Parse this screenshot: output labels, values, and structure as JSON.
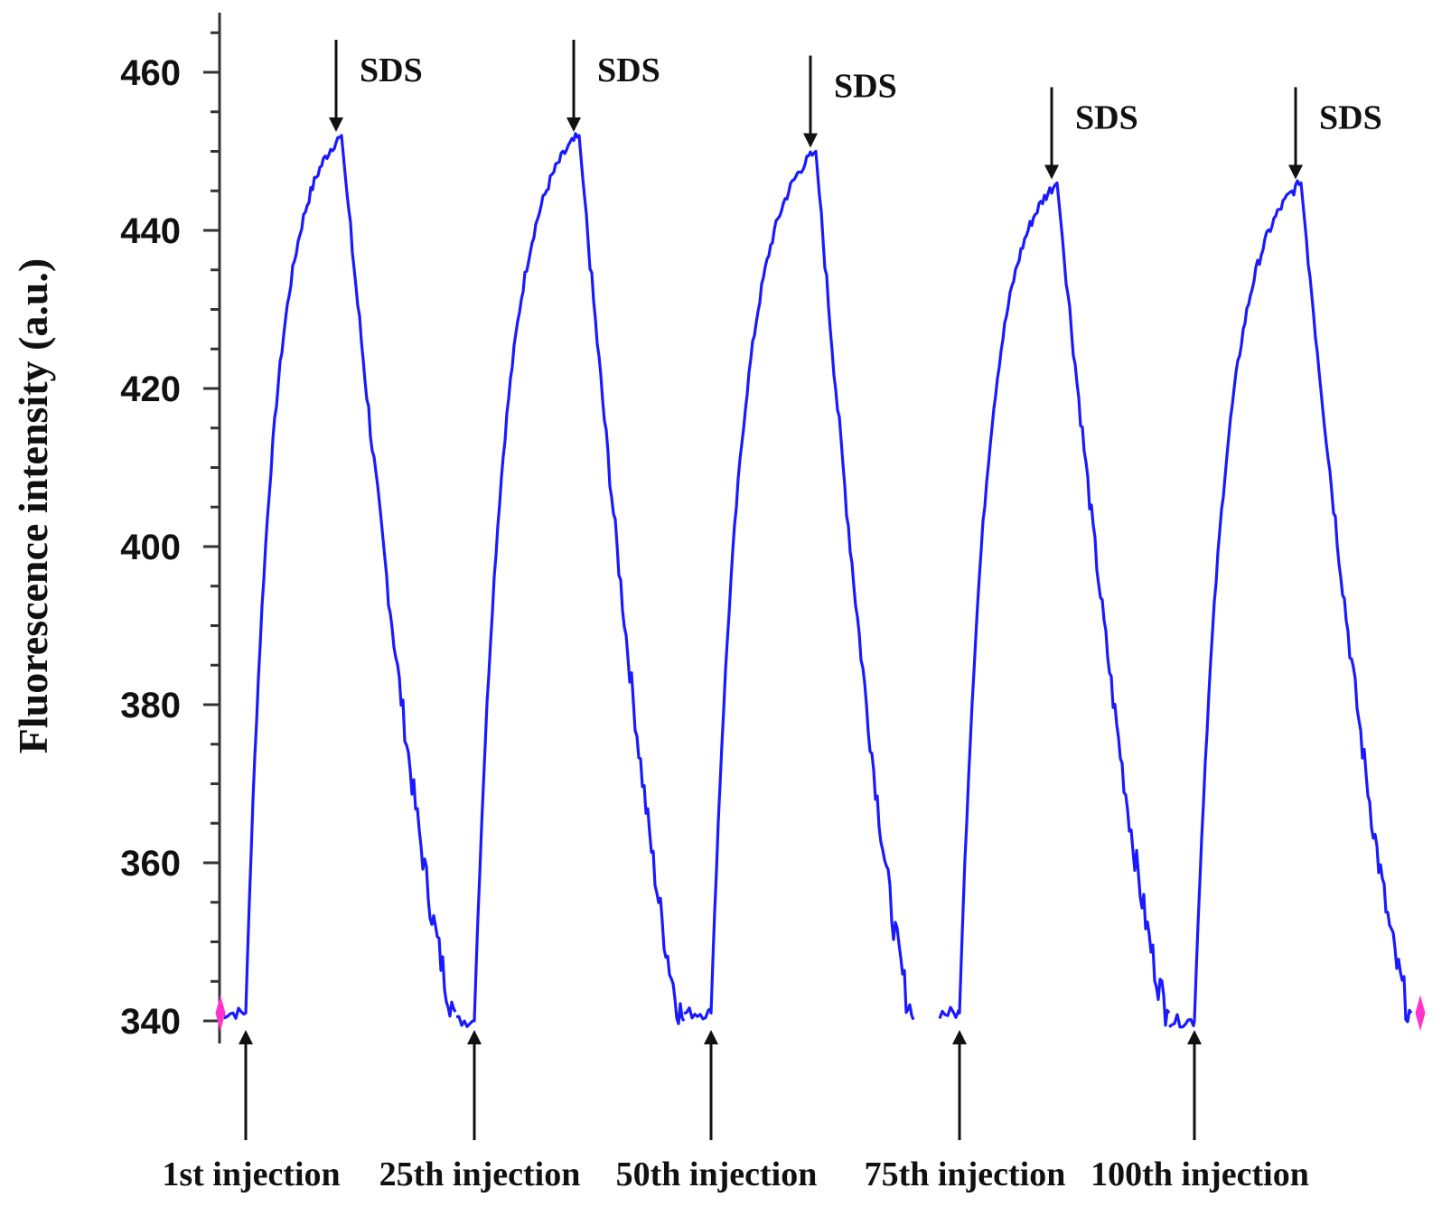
{
  "chart_data": {
    "type": "line",
    "title": "",
    "xlabel": "",
    "ylabel": "Fluorescence intensity (a.u.)",
    "ylim": [
      340,
      470
    ],
    "y_ticks": [
      340,
      360,
      380,
      400,
      420,
      440,
      460
    ],
    "y_tick_labels": [
      "340",
      "360",
      "380",
      "400",
      "420",
      "440",
      "460"
    ],
    "grid": false,
    "line_color": "#1a1aff",
    "marker_color": "#ff33cc",
    "series": [
      {
        "cycles": [
          {
            "injection_label": "1st injection",
            "sds_label": "SDS",
            "baseline": 341,
            "peak": 452,
            "end": 341,
            "start_marker": true,
            "end_marker": false
          },
          {
            "injection_label": "25th injection",
            "sds_label": "SDS",
            "baseline": 340,
            "peak": 452,
            "end": 340,
            "start_marker": false,
            "end_marker": false
          },
          {
            "injection_label": "50th injection",
            "sds_label": "SDS",
            "baseline": 341,
            "peak": 450,
            "end": 340,
            "start_marker": false,
            "end_marker": false
          },
          {
            "injection_label": "75th injection",
            "sds_label": "SDS",
            "baseline": 341,
            "peak": 446,
            "end": 341,
            "start_marker": false,
            "end_marker": false
          },
          {
            "injection_label": "100th injection",
            "sds_label": "SDS",
            "baseline": 340,
            "peak": 446,
            "end": 341,
            "start_marker": false,
            "end_marker": true
          }
        ]
      }
    ]
  }
}
